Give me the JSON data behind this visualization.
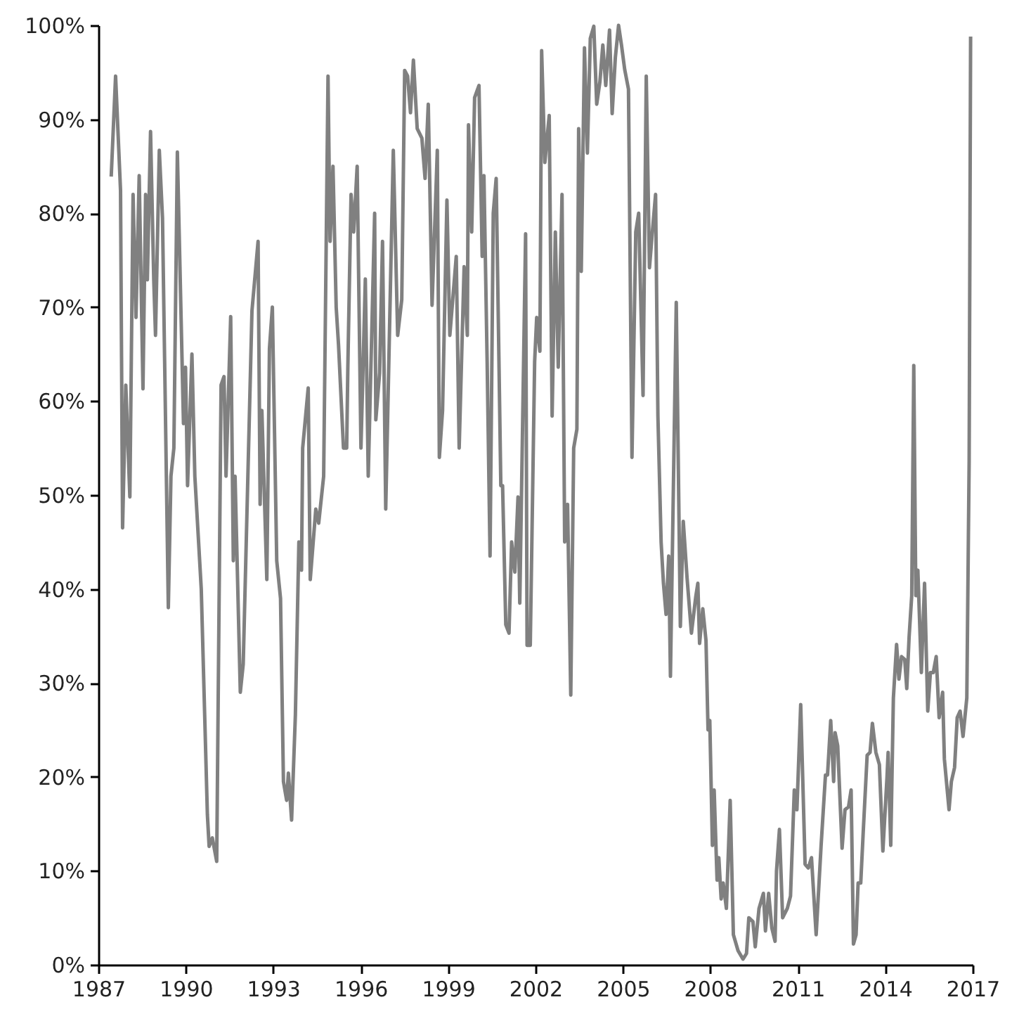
{
  "chart_data": {
    "type": "line",
    "color": "#808080",
    "x": [
      1987.44,
      1987.59,
      1987.76,
      1987.83,
      1987.94,
      1988.08,
      1988.19,
      1988.29,
      1988.4,
      1988.53,
      1988.62,
      1988.68,
      1988.79,
      1988.9,
      1988.96,
      1989.09,
      1989.2,
      1989.4,
      1989.49,
      1989.59,
      1989.71,
      1989.92,
      1989.99,
      1990.06,
      1990.21,
      1990.31,
      1990.53,
      1990.74,
      1990.8,
      1990.91,
      1991.06,
      1991.21,
      1991.31,
      1991.38,
      1991.54,
      1991.63,
      1991.69,
      1991.87,
      1991.97,
      1992.27,
      1992.48,
      1992.55,
      1992.61,
      1992.78,
      1992.87,
      1992.97,
      1993.12,
      1993.25,
      1993.35,
      1993.46,
      1993.52,
      1993.63,
      1993.76,
      1993.88,
      1993.97,
      1994.01,
      1994.2,
      1994.27,
      1994.46,
      1994.56,
      1994.73,
      1994.88,
      1994.95,
      1995.05,
      1995.16,
      1995.24,
      1995.41,
      1995.52,
      1995.56,
      1995.67,
      1995.76,
      1995.88,
      1996.01,
      1996.16,
      1996.26,
      1996.48,
      1996.52,
      1996.65,
      1996.75,
      1996.86,
      1997.12,
      1997.27,
      1997.41,
      1997.51,
      1997.61,
      1997.71,
      1997.81,
      1997.94,
      1998.1,
      1998.21,
      1998.32,
      1998.45,
      1998.63,
      1998.7,
      1998.81,
      1998.96,
      1999.06,
      1999.28,
      1999.38,
      1999.55,
      1999.66,
      1999.7,
      1999.81,
      1999.91,
      2000.06,
      2000.17,
      2000.23,
      2000.34,
      2000.44,
      2000.55,
      2000.65,
      2000.81,
      2000.87,
      2000.98,
      2001.09,
      2001.18,
      2001.29,
      2001.4,
      2001.46,
      2001.66,
      2001.71,
      2001.82,
      2001.97,
      2002.04,
      2002.15,
      2002.21,
      2002.32,
      2002.47,
      2002.57,
      2002.68,
      2002.78,
      2002.91,
      2003.0,
      2003.1,
      2003.21,
      2003.31,
      2003.42,
      2003.48,
      2003.57,
      2003.68,
      2003.78,
      2003.88,
      2004.0,
      2004.1,
      2004.21,
      2004.31,
      2004.41,
      2004.54,
      2004.63,
      2004.74,
      2004.85,
      2004.95,
      2005.06,
      2005.19,
      2005.31,
      2005.44,
      2005.54,
      2005.69,
      2005.8,
      2005.91,
      2006.01,
      2006.12,
      2006.2,
      2006.31,
      2006.39,
      2006.48,
      2006.57,
      2006.63,
      2006.83,
      2006.97,
      2007.07,
      2007.2,
      2007.35,
      2007.5,
      2007.57,
      2007.63,
      2007.74,
      2007.85,
      2007.92,
      2007.98,
      2008.07,
      2008.13,
      2008.23,
      2008.29,
      2008.37,
      2008.44,
      2008.55,
      2008.68,
      2008.79,
      2008.95,
      2009.12,
      2009.24,
      2009.32,
      2009.46,
      2009.54,
      2009.67,
      2009.82,
      2009.89,
      2010.0,
      2010.11,
      2010.22,
      2010.27,
      2010.37,
      2010.48,
      2010.64,
      2010.75,
      2010.88,
      2010.97,
      2011.1,
      2011.25,
      2011.36,
      2011.47,
      2011.63,
      2011.8,
      2011.95,
      2012.02,
      2012.13,
      2012.23,
      2012.28,
      2012.37,
      2012.52,
      2012.62,
      2012.74,
      2012.83,
      2012.91,
      2013.0,
      2013.07,
      2013.16,
      2013.24,
      2013.38,
      2013.48,
      2013.56,
      2013.68,
      2013.8,
      2013.92,
      2014.06,
      2014.1,
      2014.19,
      2014.28,
      2014.39,
      2014.47,
      2014.56,
      2014.67,
      2014.74,
      2014.82,
      2014.91,
      2014.98,
      2015.05,
      2015.12,
      2015.24,
      2015.35,
      2015.46,
      2015.55,
      2015.65,
      2015.75,
      2015.85,
      2015.97,
      2016.03,
      2016.19,
      2016.27,
      2016.38,
      2016.47,
      2016.57,
      2016.67,
      2016.8,
      2016.88,
      2016.93
    ],
    "values": [
      83.9,
      94.6,
      82.4,
      46.5,
      61.7,
      49.8,
      82,
      68.9,
      84,
      61.3,
      82,
      72.9,
      88.7,
      72.9,
      67,
      86.7,
      79.5,
      38,
      52,
      55,
      86.5,
      57.6,
      63.6,
      51,
      65,
      52,
      40,
      16,
      12.6,
      13.5,
      11,
      61.7,
      62.6,
      52,
      69,
      43,
      52,
      29,
      32,
      69.6,
      77,
      49,
      59,
      41,
      65.6,
      70,
      43,
      39,
      19.5,
      17.5,
      20.4,
      15.4,
      26.6,
      45,
      42,
      55,
      61.4,
      41,
      48.5,
      47,
      52,
      94.6,
      77,
      85,
      70,
      66,
      55,
      55,
      63.6,
      82,
      78,
      85,
      55,
      73,
      52,
      80,
      58,
      63,
      77,
      48.5,
      86.7,
      67,
      70.8,
      95.2,
      94.6,
      90.7,
      96.3,
      89,
      88,
      83.7,
      91.6,
      70.2,
      86.7,
      54,
      59,
      81.4,
      67,
      75.4,
      55,
      74.3,
      67,
      89.4,
      78,
      92.3,
      93.6,
      75.4,
      84,
      64.2,
      43.5,
      80,
      83.7,
      51,
      51,
      36.2,
      35.3,
      45,
      41.8,
      49.8,
      38.5,
      77.8,
      34,
      34,
      64.2,
      68.9,
      65.3,
      97.3,
      85.4,
      90.4,
      58.4,
      78,
      63.6,
      82,
      45,
      49,
      28.7,
      55,
      57,
      89,
      73.8,
      97.6,
      86.4,
      98.6,
      99.9,
      91.6,
      94,
      97.9,
      93.6,
      99.5,
      90.6,
      96.6,
      100,
      97.9,
      95.3,
      93.2,
      54,
      78,
      80,
      60.6,
      94.6,
      74.2,
      78,
      82,
      58.4,
      45,
      40.6,
      37.3,
      43.5,
      30.7,
      70.5,
      36,
      47.2,
      41.2,
      35.3,
      39.2,
      40.6,
      34.2,
      37.9,
      34.5,
      25,
      26,
      12.7,
      18.6,
      9,
      11.4,
      7,
      8.7,
      6,
      17.5,
      3.2,
      1.5,
      0.6,
      1.2,
      5,
      4.6,
      1.9,
      6,
      7.6,
      3.6,
      7.6,
      3.9,
      2.5,
      10,
      14.4,
      5,
      6,
      7.3,
      18.6,
      16.5,
      27.7,
      10.7,
      10.3,
      11.4,
      3.2,
      12.7,
      20.2,
      20.2,
      26,
      19.5,
      24.7,
      23.3,
      12.4,
      16.5,
      16.8,
      18.6,
      2.2,
      3.2,
      8.7,
      8.7,
      13.8,
      22.3,
      22.6,
      25.7,
      22.6,
      21.3,
      12.1,
      19.9,
      22.6,
      12.7,
      28.4,
      34.1,
      30.4,
      32.8,
      32.5,
      29.4,
      34.9,
      39.3,
      63.8,
      39.3,
      42,
      31.1,
      40.6,
      27,
      31.1,
      31.1,
      32.8,
      26.3,
      29,
      21.9,
      16.5,
      19.5,
      21,
      26.3,
      27,
      24.3,
      28.4,
      53.6,
      98.8
    ],
    "xlim": [
      1987,
      2017
    ],
    "xticks": [
      1987,
      1990,
      1993,
      1996,
      1999,
      2002,
      2005,
      2008,
      2011,
      2014,
      2017
    ],
    "ylim": [
      0,
      100
    ],
    "yticks": [
      {
        "value": 0,
        "label": "0%"
      },
      {
        "value": 10,
        "label": "10%"
      },
      {
        "value": 20,
        "label": "20%"
      },
      {
        "value": 30,
        "label": "30%"
      },
      {
        "value": 40,
        "label": "40%"
      },
      {
        "value": 50,
        "label": "50%"
      },
      {
        "value": 60,
        "label": "60%"
      },
      {
        "value": 70,
        "label": "70%"
      },
      {
        "value": 80,
        "label": "80%"
      },
      {
        "value": 90,
        "label": "90%"
      },
      {
        "value": 100,
        "label": "100%"
      }
    ]
  }
}
